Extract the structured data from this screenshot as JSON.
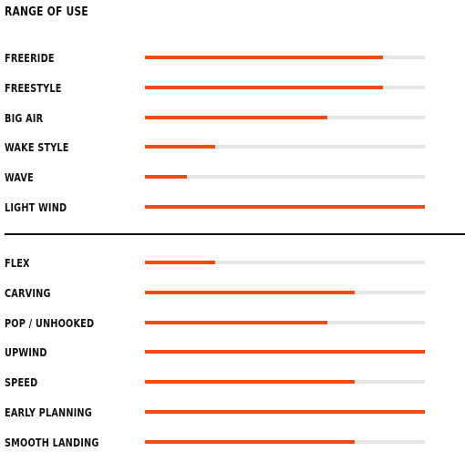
{
  "chart_data": {
    "type": "bar",
    "title": "RANGE OF USE",
    "xlim": [
      0,
      1
    ],
    "fill_color": "#f24a14",
    "track_color": "#e6e6e6",
    "groups": [
      {
        "items": [
          {
            "label": "FREERIDE",
            "value": 0.85
          },
          {
            "label": "FREESTYLE",
            "value": 0.85
          },
          {
            "label": "BIG AIR",
            "value": 0.65
          },
          {
            "label": "WAKE STYLE",
            "value": 0.25
          },
          {
            "label": "WAVE",
            "value": 0.15
          },
          {
            "label": "LIGHT WIND",
            "value": 1.0
          }
        ]
      },
      {
        "items": [
          {
            "label": "FLEX",
            "value": 0.25
          },
          {
            "label": "CARVING",
            "value": 0.75
          },
          {
            "label": "POP / UNHOOKED",
            "value": 0.65
          },
          {
            "label": "UPWIND",
            "value": 1.0
          },
          {
            "label": "SPEED",
            "value": 0.75
          },
          {
            "label": "EARLY PLANNING",
            "value": 1.0
          },
          {
            "label": "SMOOTH LANDING",
            "value": 0.75
          }
        ]
      }
    ]
  }
}
